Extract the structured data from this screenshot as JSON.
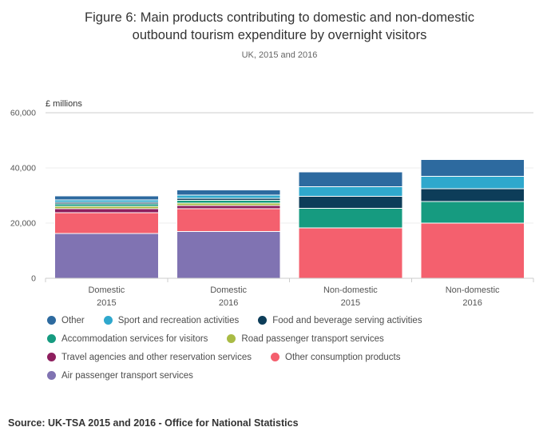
{
  "title": {
    "line1": "Figure 6: Main products contributing to domestic and non-domestic",
    "line2": "outbound tourism expenditure by overnight visitors"
  },
  "subtitle": "UK, 2015 and 2016",
  "axis": {
    "unit_label": "£ millions",
    "ticks": [
      {
        "label": "0",
        "value": 0
      },
      {
        "label": "20,000",
        "value": 20000
      },
      {
        "label": "40,000",
        "value": 40000
      },
      {
        "label": "60,000",
        "value": 60000
      }
    ]
  },
  "chart_data": {
    "type": "bar",
    "stacked": true,
    "title": "Figure 6: Main products contributing to domestic and non-domestic outbound tourism expenditure by overnight visitors",
    "subtitle": "UK, 2015 and 2016",
    "ylabel": "£ millions",
    "ylim": [
      0,
      60000
    ],
    "grid": true,
    "legend_position": "bottom",
    "categories": [
      [
        "Domestic",
        "2015"
      ],
      [
        "Domestic",
        "2016"
      ],
      [
        "Non-domestic",
        "2015"
      ],
      [
        "Non-domestic",
        "2016"
      ]
    ],
    "series": [
      {
        "name": "Air passenger transport services",
        "color": "#8073b2",
        "values": [
          16300,
          17000,
          0,
          0
        ]
      },
      {
        "name": "Other consumption products",
        "color": "#f4606e",
        "values": [
          7500,
          8200,
          18300,
          20000
        ]
      },
      {
        "name": "Travel agencies and other reservation services",
        "color": "#8e1f5e",
        "values": [
          1400,
          1200,
          0,
          0
        ]
      },
      {
        "name": "Road passenger transport services",
        "color": "#a9bb45",
        "values": [
          900,
          900,
          0,
          0
        ]
      },
      {
        "name": "Accommodation services for visitors",
        "color": "#169b80",
        "values": [
          900,
          900,
          7000,
          7800
        ]
      },
      {
        "name": "Food and beverage serving activities",
        "color": "#0d3d59",
        "values": [
          600,
          800,
          4400,
          4600
        ]
      },
      {
        "name": "Sport and recreation activities",
        "color": "#2fa8cd",
        "values": [
          800,
          1100,
          3500,
          4600
        ]
      },
      {
        "name": "Other",
        "color": "#2d6a9f",
        "values": [
          1500,
          2000,
          5400,
          6100
        ]
      }
    ]
  },
  "legend": {
    "rows": [
      [
        "Other",
        "Sport and recreation activities",
        "Food and beverage serving activities"
      ],
      [
        "Accommodation services for visitors",
        "Road passenger transport services"
      ],
      [
        "Travel agencies and other reservation services",
        "Other consumption products"
      ],
      [
        "Air passenger transport services"
      ]
    ]
  },
  "source": "Source: UK-TSA 2015 and 2016 - Office for National Statistics"
}
